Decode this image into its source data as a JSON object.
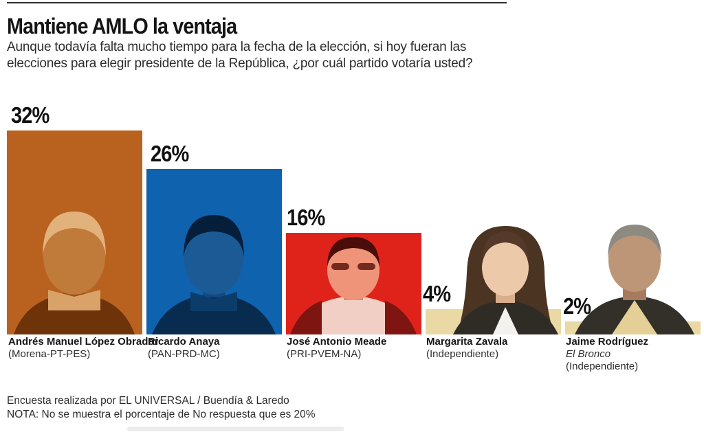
{
  "header": {
    "title": "Mantiene AMLO la ventaja",
    "subtitle": "Aunque todavía falta mucho tiempo para la fecha de la elección, si hoy fueran las elecciones para elegir presidente de la República, ¿por cuál partido votaría usted?"
  },
  "chart_data": {
    "type": "bar",
    "title": "Mantiene AMLO la ventaja",
    "question": "Aunque todavía falta mucho tiempo para la fecha de la elección, si hoy fueran las elecciones para elegir presidente de la República, ¿por cuál partido votaría usted?",
    "categories": [
      "Andrés Manuel López Obrador",
      "Ricardo Anaya",
      "José Antonio Meade",
      "Margarita Zavala",
      "Jaime Rodríguez"
    ],
    "values": [
      32,
      26,
      16,
      4,
      2
    ],
    "unit": "%",
    "ylim": [
      0,
      32
    ],
    "grid": false,
    "legend": "none",
    "bars": [
      {
        "candidate": "Andrés Manuel López Obrador",
        "party": "(Morena-PT-PES)",
        "value": 32,
        "label": "32%",
        "color": "#b9621f"
      },
      {
        "candidate": "Ricardo Anaya",
        "party": "(PAN-PRD-MC)",
        "value": 26,
        "label": "26%",
        "color": "#0f62ae"
      },
      {
        "candidate": "José Antonio Meade",
        "party": "(PRI-PVEM-NA)",
        "value": 16,
        "label": "16%",
        "color": "#df231b"
      },
      {
        "candidate": "Margarita Zavala",
        "party": "(Independiente)",
        "value": 4,
        "label": "4%",
        "color": "#ead9a4"
      },
      {
        "candidate": "Jaime Rodríguez",
        "nickname": "El Bronco",
        "party": "(Independiente)",
        "value": 2,
        "label": "2%",
        "color": "#ead9a4"
      }
    ]
  },
  "footer": {
    "source": "Encuesta realizada por EL UNIVERSAL / Buendía & Laredo",
    "note": "NOTA: No se muestra el porcentaje de No respuesta que es 20%"
  }
}
